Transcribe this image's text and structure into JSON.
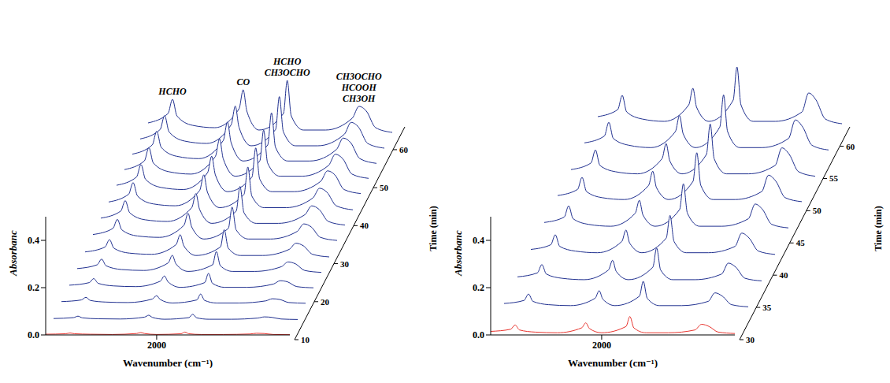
{
  "chart_data": [
    {
      "type": "line",
      "x_label": "Wavenumber (cm⁻¹)",
      "y_label": "Absorbanc",
      "z_label": "Time (min)",
      "x": [
        3000,
        2820,
        2780,
        2740,
        2600,
        2400,
        2180,
        2143,
        2110,
        2000,
        1780,
        1746,
        1710,
        1600,
        1400,
        1160,
        1100,
        1033,
        950,
        800
      ],
      "xlim": [
        3000,
        800
      ],
      "xticks": [
        2000
      ],
      "ylim": [
        0,
        0.5
      ],
      "yticks": [
        {
          "value": 0,
          "label": "0.0"
        },
        {
          "value": 0.2,
          "label": "0.2"
        },
        {
          "value": 0.4,
          "label": "0.4"
        }
      ],
      "zlim": [
        10,
        66
      ],
      "zticks": [
        10,
        20,
        30,
        40,
        50,
        60
      ],
      "annotations": [
        {
          "lines": [
            "HCHO"
          ],
          "x": 2780
        },
        {
          "lines": [
            "CO"
          ],
          "x": 2143
        },
        {
          "lines": [
            "HCHO",
            "CH3OCHO"
          ],
          "x": 1746
        },
        {
          "lines": [
            "CH3OCHO",
            "HCOOH",
            "CH3OH"
          ],
          "x": 1100
        }
      ],
      "series": [
        {
          "time": 10,
          "color": "#e8322c",
          "values": [
            0.003,
            0.005,
            0.008,
            0.005,
            0.003,
            0.002,
            0.006,
            0.01,
            0.006,
            0.002,
            0.005,
            0.012,
            0.005,
            0.002,
            0.002,
            0.004,
            0.007,
            0.006,
            0.002,
            0.001
          ]
        },
        {
          "time": 14,
          "color": "#1f2f8f",
          "values": [
            0.006,
            0.01,
            0.016,
            0.009,
            0.005,
            0.004,
            0.012,
            0.02,
            0.011,
            0.003,
            0.01,
            0.024,
            0.009,
            0.003,
            0.003,
            0.008,
            0.013,
            0.011,
            0.004,
            0.002
          ]
        },
        {
          "time": 18,
          "color": "#1f2f8f",
          "values": [
            0.011,
            0.018,
            0.029,
            0.016,
            0.009,
            0.007,
            0.022,
            0.036,
            0.02,
            0.005,
            0.018,
            0.043,
            0.016,
            0.005,
            0.005,
            0.014,
            0.023,
            0.02,
            0.007,
            0.004
          ]
        },
        {
          "time": 22,
          "color": "#1f2f8f",
          "values": [
            0.017,
            0.028,
            0.045,
            0.025,
            0.014,
            0.011,
            0.034,
            0.056,
            0.031,
            0.008,
            0.028,
            0.067,
            0.025,
            0.008,
            0.008,
            0.022,
            0.036,
            0.031,
            0.011,
            0.006
          ]
        },
        {
          "time": 26,
          "color": "#1f2f8f",
          "values": [
            0.024,
            0.04,
            0.064,
            0.036,
            0.02,
            0.016,
            0.048,
            0.08,
            0.044,
            0.012,
            0.04,
            0.096,
            0.036,
            0.012,
            0.012,
            0.032,
            0.052,
            0.044,
            0.016,
            0.008
          ]
        },
        {
          "time": 30,
          "color": "#1f2f8f",
          "values": [
            0.031,
            0.052,
            0.083,
            0.047,
            0.026,
            0.021,
            0.062,
            0.104,
            0.057,
            0.016,
            0.052,
            0.125,
            0.047,
            0.016,
            0.016,
            0.042,
            0.068,
            0.057,
            0.021,
            0.01
          ]
        },
        {
          "time": 34,
          "color": "#1f2f8f",
          "values": [
            0.038,
            0.064,
            0.102,
            0.058,
            0.032,
            0.026,
            0.077,
            0.128,
            0.07,
            0.019,
            0.064,
            0.154,
            0.058,
            0.019,
            0.019,
            0.051,
            0.083,
            0.07,
            0.026,
            0.013
          ]
        },
        {
          "time": 38,
          "color": "#1f2f8f",
          "values": [
            0.044,
            0.074,
            0.118,
            0.067,
            0.037,
            0.03,
            0.089,
            0.148,
            0.081,
            0.022,
            0.074,
            0.178,
            0.067,
            0.022,
            0.022,
            0.059,
            0.096,
            0.081,
            0.03,
            0.015
          ]
        },
        {
          "time": 42,
          "color": "#1f2f8f",
          "values": [
            0.049,
            0.082,
            0.131,
            0.074,
            0.041,
            0.033,
            0.098,
            0.164,
            0.09,
            0.025,
            0.082,
            0.197,
            0.074,
            0.025,
            0.025,
            0.066,
            0.107,
            0.09,
            0.033,
            0.016
          ]
        },
        {
          "time": 46,
          "color": "#1f2f8f",
          "values": [
            0.053,
            0.088,
            0.141,
            0.079,
            0.044,
            0.035,
            0.106,
            0.176,
            0.097,
            0.026,
            0.088,
            0.211,
            0.079,
            0.026,
            0.026,
            0.07,
            0.114,
            0.097,
            0.035,
            0.018
          ]
        },
        {
          "time": 50,
          "color": "#1f2f8f",
          "values": [
            0.056,
            0.093,
            0.149,
            0.084,
            0.047,
            0.037,
            0.112,
            0.186,
            0.102,
            0.028,
            0.093,
            0.223,
            0.084,
            0.028,
            0.028,
            0.074,
            0.121,
            0.102,
            0.037,
            0.019
          ]
        },
        {
          "time": 54,
          "color": "#1f2f8f",
          "values": [
            0.058,
            0.097,
            0.155,
            0.087,
            0.049,
            0.039,
            0.116,
            0.194,
            0.107,
            0.029,
            0.097,
            0.233,
            0.087,
            0.029,
            0.029,
            0.078,
            0.126,
            0.107,
            0.039,
            0.019
          ]
        },
        {
          "time": 58,
          "color": "#1f2f8f",
          "values": [
            0.059,
            0.099,
            0.158,
            0.089,
            0.05,
            0.04,
            0.119,
            0.198,
            0.109,
            0.03,
            0.099,
            0.238,
            0.089,
            0.03,
            0.03,
            0.079,
            0.129,
            0.109,
            0.04,
            0.02
          ]
        },
        {
          "time": 62,
          "color": "#1f2f8f",
          "values": [
            0.06,
            0.1,
            0.16,
            0.09,
            0.05,
            0.04,
            0.12,
            0.2,
            0.11,
            0.03,
            0.1,
            0.24,
            0.09,
            0.03,
            0.03,
            0.08,
            0.13,
            0.11,
            0.04,
            0.02
          ]
        }
      ]
    },
    {
      "type": "line",
      "x_label": "Wavenumber (cm⁻¹)",
      "y_label": "Absorbanc",
      "z_label": "Time (min)",
      "x": [
        3000,
        2820,
        2780,
        2740,
        2600,
        2400,
        2180,
        2143,
        2110,
        2000,
        1780,
        1746,
        1710,
        1600,
        1400,
        1160,
        1100,
        1033,
        950,
        800
      ],
      "xlim": [
        3000,
        800
      ],
      "xticks": [
        2000
      ],
      "ylim": [
        0,
        0.5
      ],
      "yticks": [
        {
          "value": 0,
          "label": "0.0"
        },
        {
          "value": 0.2,
          "label": "0.2"
        },
        {
          "value": 0.4,
          "label": "0.4"
        }
      ],
      "zlim": [
        30,
        63
      ],
      "zticks": [
        30,
        35,
        40,
        45,
        50,
        55,
        60
      ],
      "series": [
        {
          "time": 30,
          "color": "#e8322c",
          "values": [
            0.015,
            0.024,
            0.042,
            0.021,
            0.012,
            0.009,
            0.03,
            0.051,
            0.027,
            0.009,
            0.036,
            0.078,
            0.03,
            0.009,
            0.009,
            0.021,
            0.045,
            0.036,
            0.012,
            0.006
          ]
        },
        {
          "time": 34,
          "color": "#1f2f8f",
          "values": [
            0.023,
            0.036,
            0.063,
            0.032,
            0.018,
            0.014,
            0.045,
            0.077,
            0.041,
            0.014,
            0.054,
            0.117,
            0.045,
            0.014,
            0.014,
            0.032,
            0.068,
            0.054,
            0.018,
            0.009
          ]
        },
        {
          "time": 38,
          "color": "#1f2f8f",
          "values": [
            0.029,
            0.046,
            0.081,
            0.041,
            0.023,
            0.017,
            0.058,
            0.099,
            0.052,
            0.017,
            0.07,
            0.151,
            0.058,
            0.017,
            0.017,
            0.041,
            0.087,
            0.07,
            0.023,
            0.012
          ]
        },
        {
          "time": 42,
          "color": "#1f2f8f",
          "values": [
            0.035,
            0.055,
            0.097,
            0.048,
            0.028,
            0.021,
            0.069,
            0.117,
            0.062,
            0.021,
            0.083,
            0.179,
            0.069,
            0.021,
            0.021,
            0.048,
            0.104,
            0.083,
            0.028,
            0.014
          ]
        },
        {
          "time": 46,
          "color": "#1f2f8f",
          "values": [
            0.039,
            0.062,
            0.109,
            0.055,
            0.031,
            0.023,
            0.078,
            0.133,
            0.07,
            0.023,
            0.094,
            0.203,
            0.078,
            0.023,
            0.023,
            0.055,
            0.117,
            0.094,
            0.031,
            0.016
          ]
        },
        {
          "time": 50,
          "color": "#1f2f8f",
          "values": [
            0.043,
            0.069,
            0.12,
            0.06,
            0.034,
            0.026,
            0.086,
            0.146,
            0.077,
            0.026,
            0.103,
            0.224,
            0.086,
            0.026,
            0.026,
            0.06,
            0.129,
            0.103,
            0.034,
            0.017
          ]
        },
        {
          "time": 54,
          "color": "#1f2f8f",
          "values": [
            0.046,
            0.074,
            0.129,
            0.064,
            0.037,
            0.028,
            0.092,
            0.156,
            0.083,
            0.028,
            0.11,
            0.239,
            0.092,
            0.028,
            0.028,
            0.064,
            0.138,
            0.11,
            0.037,
            0.018
          ]
        },
        {
          "time": 58,
          "color": "#1f2f8f",
          "values": [
            0.049,
            0.078,
            0.136,
            0.068,
            0.039,
            0.029,
            0.097,
            0.165,
            0.087,
            0.029,
            0.116,
            0.252,
            0.097,
            0.029,
            0.029,
            0.068,
            0.146,
            0.116,
            0.039,
            0.019
          ]
        },
        {
          "time": 62,
          "color": "#1f2f8f",
          "values": [
            0.05,
            0.08,
            0.14,
            0.07,
            0.04,
            0.03,
            0.1,
            0.17,
            0.09,
            0.03,
            0.12,
            0.26,
            0.1,
            0.03,
            0.03,
            0.07,
            0.15,
            0.12,
            0.04,
            0.02
          ]
        }
      ]
    }
  ]
}
